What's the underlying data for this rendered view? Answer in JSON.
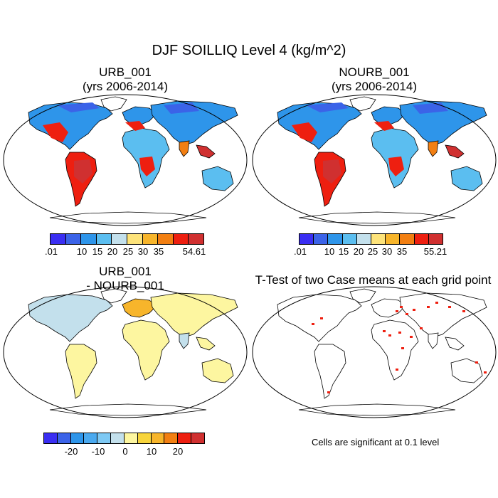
{
  "figure_title": "DJF SOILLIQ Level 4 (kg/m^2)",
  "panels": [
    {
      "id": "p1",
      "title": "URB_001",
      "subtitle": "(yrs 2006-2014)"
    },
    {
      "id": "p2",
      "title": "NOURB_001",
      "subtitle": "(yrs 2006-2014)"
    },
    {
      "id": "p3",
      "title": "URB_001",
      "subtitle": "- NOURB_001"
    },
    {
      "id": "p4",
      "title": "T-Test of two Case means at each grid point",
      "subtitle": ""
    }
  ],
  "colorbars": {
    "cb1": {
      "colors": [
        "#3a2ef2",
        "#3b63e8",
        "#2e95ea",
        "#5bbef0",
        "#c3e0ec",
        "#fde37a",
        "#f7b52b",
        "#f27f12",
        "#ee1f10",
        "#d03030"
      ],
      "labels": [
        ".01",
        "10",
        "15",
        "20",
        "25",
        "30",
        "35",
        "54.61"
      ]
    },
    "cb2": {
      "colors": [
        "#3a2ef2",
        "#3b63e8",
        "#2e95ea",
        "#5bbef0",
        "#c3e0ec",
        "#fde37a",
        "#f7b52b",
        "#f27f12",
        "#ee1f10",
        "#d03030"
      ],
      "labels": [
        ".01",
        "10",
        "15",
        "20",
        "25",
        "30",
        "35",
        "55.21"
      ]
    },
    "cb3": {
      "colors": [
        "#3a2ef2",
        "#3b63e8",
        "#2e95ea",
        "#4aa9ef",
        "#7ec9f4",
        "#c3e0ec",
        "#fdf6a0",
        "#f7d43b",
        "#f7b52b",
        "#f27f12",
        "#ee1f10",
        "#d03030"
      ],
      "labels": [
        "-20",
        "-10",
        "0",
        "10",
        "20"
      ]
    }
  },
  "footnote": "Cells are significant at 0.1 level",
  "map_colors": {
    "ocean": "#ffffff",
    "coast": "#000000"
  }
}
